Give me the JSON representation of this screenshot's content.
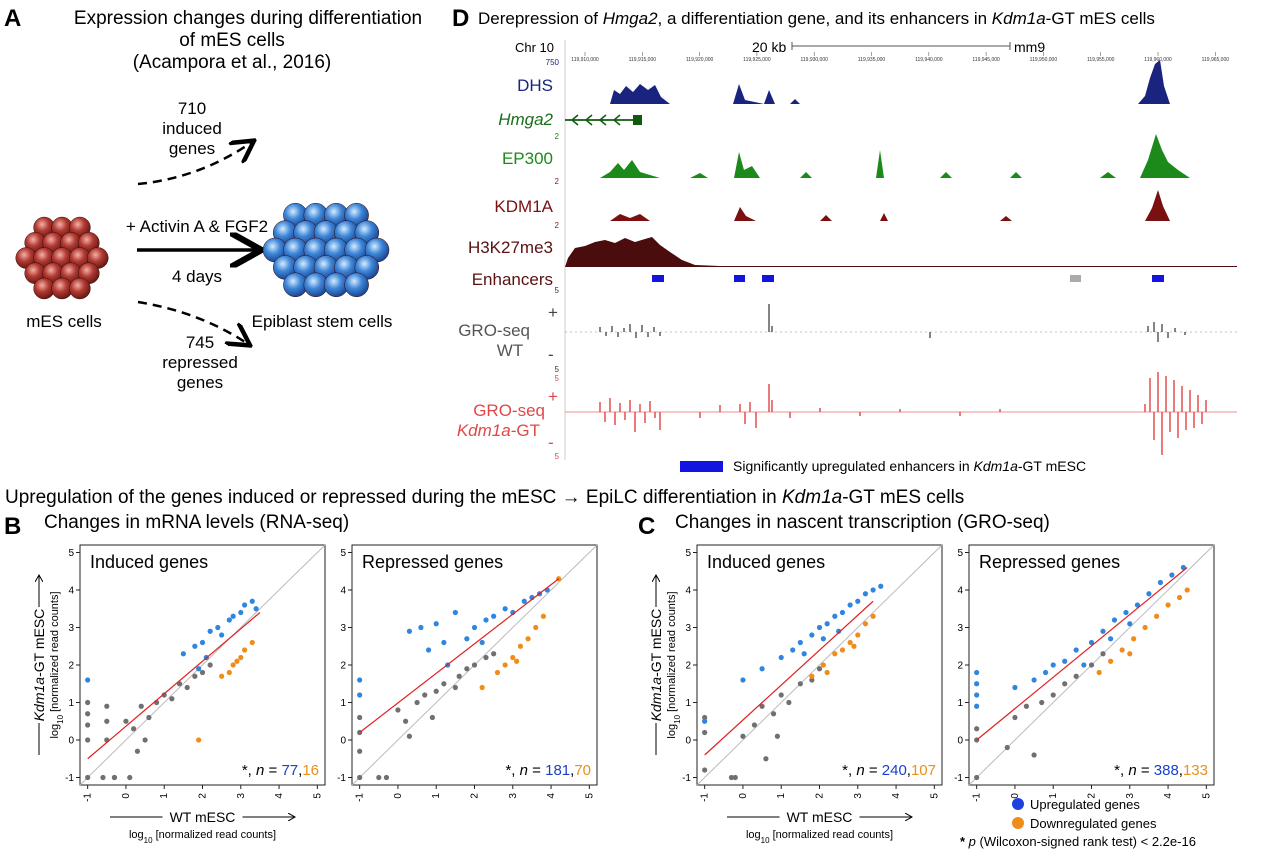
{
  "panel_a": {
    "letter": "A",
    "title": [
      "Expression changes during differentiation",
      "of mES cells",
      "(Acampora et al., 2016)"
    ],
    "induced_count": 710,
    "induced_label": [
      "induced",
      "genes"
    ],
    "repressed_count": 745,
    "repressed_label": [
      "repressed",
      "genes"
    ],
    "treatment": "+ Activin A & FGF2",
    "duration": "4 days",
    "start_cells": "mES cells",
    "end_cells": "Epiblast stem cells"
  },
  "panel_d": {
    "letter": "D",
    "title": [
      "Derepression of ",
      "Hmga2",
      ", a differentiation gene, and its enhancers in ",
      "Kdm1a",
      "-GT mES cells"
    ],
    "chromosome": "Chr 10",
    "scale": "20 kb",
    "assembly": "mm9",
    "coordinates": [
      "119,910,000",
      "119,915,000",
      "119,920,000",
      "119,925,000",
      "119,930,000",
      "119,935,000",
      "119,940,000",
      "119,945,000",
      "119,950,000",
      "119,955,000",
      "119,960,000",
      "119,965,000"
    ],
    "tracks": {
      "dhs": {
        "label": "DHS",
        "max": 750
      },
      "gene": "Hmga2",
      "ep300": {
        "label": "EP300",
        "max": 2
      },
      "kdm1a": {
        "label": "KDM1A",
        "max": 2
      },
      "h3k27me3": {
        "label": "H3K27me3",
        "max": 2
      },
      "enhancers": "Enhancers",
      "gro_wt": {
        "label": [
          "GRO-seq",
          "WT"
        ],
        "max": 5,
        "min": 5,
        "plus": "+",
        "minus": "-"
      },
      "gro_gt": {
        "label": [
          "GRO-seq",
          "Kdm1a",
          "-GT"
        ],
        "max": 5,
        "min": 5,
        "plus": "+",
        "minus": "-"
      }
    },
    "legend": [
      "Significantly upregulated enhancers in ",
      "Kdm1a",
      "-GT mESC"
    ]
  },
  "section_title": [
    "Upregulation of the genes induced or repressed during the mESC → EpiLC differentiation in ",
    "Kdm1a",
    "-GT mES cells"
  ],
  "panel_b": {
    "letter": "B",
    "title": "Changes in mRNA levels (RNA-seq)",
    "x_label": "WT mESC",
    "x_sublabel": [
      "log",
      "10",
      " [normalized read counts]"
    ],
    "y_label": [
      "Kdm1a",
      "-GT mESC"
    ],
    "y_sublabel": [
      "log",
      "10",
      " [normalized read counts]"
    ],
    "plots": [
      {
        "type": "scatter",
        "title": "Induced genes",
        "xlim": [
          -1.2,
          5.2
        ],
        "ylim": [
          -1.2,
          5.2
        ],
        "xticks": [
          -1,
          0,
          1,
          2,
          3,
          4,
          5
        ],
        "yticks": [
          -1,
          0,
          1,
          2,
          3,
          4,
          5
        ],
        "series": [
          {
            "color": "#2f86e0",
            "x": [
              1.5,
              1.8,
              2.0,
              2.2,
              2.4,
              2.5,
              2.7,
              2.8,
              3.0,
              3.1,
              3.3,
              3.4,
              2.1,
              1.9,
              -1
            ],
            "values": [
              2.3,
              2.5,
              2.6,
              2.9,
              3.0,
              2.8,
              3.2,
              3.3,
              3.4,
              3.6,
              3.7,
              3.5,
              2.2,
              1.9,
              1.6
            ]
          },
          {
            "color": "#f08c1a",
            "x": [
              2.5,
              2.7,
              2.8,
              3.0,
              3.1,
              3.3,
              2.9,
              1.9
            ],
            "values": [
              1.7,
              1.8,
              2.0,
              2.2,
              2.4,
              2.6,
              2.1,
              0.0
            ]
          },
          {
            "color": "#707070",
            "x": [
              -1,
              -1,
              -1,
              -1,
              -1,
              -0.5,
              -0.5,
              -0.5,
              -0.3,
              0,
              0.2,
              0.4,
              0.6,
              0.8,
              1.0,
              1.2,
              1.4,
              1.6,
              1.8,
              2.0,
              2.2,
              0.5,
              0.3,
              -0.6,
              -0.3,
              0.1
            ],
            "values": [
              1.0,
              0.7,
              0.4,
              0,
              -1,
              0.9,
              0.5,
              0,
              -1,
              0.5,
              0.3,
              0.9,
              0.6,
              1.0,
              1.2,
              1.1,
              1.5,
              1.4,
              1.7,
              1.8,
              2.0,
              0,
              -0.3,
              -1,
              -1,
              -1
            ]
          }
        ],
        "fit_line": {
          "x": [
            -1,
            3.5
          ],
          "values": [
            -0.5,
            3.4
          ]
        },
        "annotation": [
          "*, ",
          "n",
          " = "
        ],
        "n_up": 77,
        "separator": ",",
        "n_down": 16
      },
      {
        "type": "scatter",
        "title": "Repressed genes",
        "xlim": [
          -1.2,
          5.2
        ],
        "ylim": [
          -1.2,
          5.2
        ],
        "xticks": [
          -1,
          0,
          1,
          2,
          3,
          4,
          5
        ],
        "yticks": [
          -1,
          0,
          1,
          2,
          3,
          4,
          5
        ],
        "series": [
          {
            "color": "#2f86e0",
            "x": [
              -1,
              -1,
              0.3,
              0.6,
              0.8,
              1.0,
              1.2,
              1.5,
              1.8,
              2.0,
              2.3,
              2.5,
              2.8,
              3.0,
              3.3,
              3.5,
              3.7,
              3.9,
              1.3,
              2.2
            ],
            "values": [
              1.6,
              1.2,
              2.9,
              3.0,
              2.4,
              3.1,
              2.6,
              3.4,
              2.7,
              3.0,
              3.2,
              3.3,
              3.5,
              3.4,
              3.7,
              3.8,
              3.9,
              4.0,
              2.0,
              2.6
            ]
          },
          {
            "color": "#f08c1a",
            "x": [
              2.6,
              2.8,
              3.0,
              3.2,
              3.4,
              3.6,
              3.8,
              2.2,
              3.1,
              4.2
            ],
            "values": [
              1.8,
              2.0,
              2.2,
              2.5,
              2.7,
              3.0,
              3.3,
              1.4,
              2.1,
              4.3
            ]
          },
          {
            "color": "#707070",
            "x": [
              -1,
              -1,
              -1,
              -1,
              -0.3,
              0,
              0.2,
              0.5,
              0.7,
              1.0,
              1.2,
              1.5,
              1.8,
              2.0,
              2.3,
              2.5,
              0.3,
              -0.5,
              0.9,
              1.6
            ],
            "values": [
              0.6,
              0.2,
              -0.3,
              -1,
              -1,
              0.8,
              0.5,
              1.0,
              1.2,
              1.3,
              1.5,
              1.4,
              1.9,
              2.0,
              2.2,
              2.3,
              0.1,
              -1,
              0.6,
              1.7
            ]
          }
        ],
        "fit_line": {
          "x": [
            -1,
            4.2
          ],
          "values": [
            0.2,
            4.3
          ]
        },
        "annotation": [
          "*, ",
          "n",
          " = "
        ],
        "n_up": 181,
        "separator": ",",
        "n_down": 70
      }
    ]
  },
  "panel_c": {
    "letter": "C",
    "title": "Changes in nascent transcription (GRO-seq)",
    "x_label": "WT mESC",
    "x_sublabel": [
      "log",
      "10",
      " [normalized read counts]"
    ],
    "y_label": [
      "Kdm1a",
      "-GT mESC"
    ],
    "y_sublabel": [
      "log",
      "10",
      " [normalized read counts]"
    ],
    "plots": [
      {
        "type": "scatter",
        "title": "Induced genes",
        "xlim": [
          -1.2,
          5.2
        ],
        "ylim": [
          -1.2,
          5.2
        ],
        "xticks": [
          -1,
          0,
          1,
          2,
          3,
          4,
          5
        ],
        "yticks": [
          -1,
          0,
          1,
          2,
          3,
          4,
          5
        ],
        "series": [
          {
            "color": "#2f86e0",
            "x": [
              -1,
              0,
              0.5,
              1.0,
              1.3,
              1.5,
              1.8,
              2.0,
              2.2,
              2.4,
              2.6,
              2.8,
              3.0,
              3.2,
              3.4,
              3.6,
              2.1,
              1.6,
              2.5
            ],
            "values": [
              0.5,
              1.6,
              1.9,
              2.2,
              2.4,
              2.6,
              2.8,
              3.0,
              3.1,
              3.3,
              3.4,
              3.6,
              3.7,
              3.9,
              4.0,
              4.1,
              2.7,
              2.3,
              2.9
            ]
          },
          {
            "color": "#f08c1a",
            "x": [
              1.8,
              2.1,
              2.4,
              2.6,
              2.8,
              3.0,
              3.2,
              3.4,
              2.2,
              2.9
            ],
            "values": [
              1.7,
              2.0,
              2.3,
              2.4,
              2.6,
              2.8,
              3.1,
              3.3,
              1.8,
              2.5
            ]
          },
          {
            "color": "#707070",
            "x": [
              -1,
              -1,
              -1,
              -0.2,
              0,
              0.3,
              0.5,
              0.8,
              1.0,
              1.2,
              1.5,
              1.8,
              2.0,
              0.6,
              0.9,
              -0.3
            ],
            "values": [
              0.6,
              0.2,
              -0.8,
              -1,
              0.1,
              0.4,
              0.9,
              0.7,
              1.2,
              1.0,
              1.5,
              1.6,
              1.9,
              -0.5,
              0.1,
              -1
            ]
          }
        ],
        "fit_line": {
          "x": [
            -1,
            3.4
          ],
          "values": [
            -0.4,
            3.7
          ]
        },
        "annotation": [
          "*, ",
          "n",
          " = "
        ],
        "n_up": 240,
        "separator": ",",
        "n_down": 107
      },
      {
        "type": "scatter",
        "title": "Repressed genes",
        "xlim": [
          -1.2,
          5.2
        ],
        "ylim": [
          -1.2,
          5.2
        ],
        "xticks": [
          -1,
          0,
          1,
          2,
          3,
          4,
          5
        ],
        "yticks": [
          -1,
          0,
          1,
          2,
          3,
          4,
          5
        ],
        "series": [
          {
            "color": "#2f86e0",
            "x": [
              -1,
              -1,
              -1,
              -1,
              0,
              0.5,
              0.8,
              1.0,
              1.3,
              1.6,
              2.0,
              2.3,
              2.6,
              2.9,
              3.2,
              3.5,
              3.8,
              4.1,
              4.4,
              1.8,
              2.5,
              3.0
            ],
            "values": [
              1.8,
              1.5,
              1.2,
              0.9,
              1.4,
              1.6,
              1.8,
              2.0,
              2.1,
              2.4,
              2.6,
              2.9,
              3.2,
              3.4,
              3.6,
              3.9,
              4.2,
              4.4,
              4.6,
              2.0,
              2.7,
              3.1
            ]
          },
          {
            "color": "#f08c1a",
            "x": [
              2.2,
              2.5,
              2.8,
              3.1,
              3.4,
              3.7,
              4.0,
              4.3,
              4.5,
              3.0
            ],
            "values": [
              1.8,
              2.1,
              2.4,
              2.7,
              3.0,
              3.3,
              3.6,
              3.8,
              4.0,
              2.3
            ]
          },
          {
            "color": "#707070",
            "x": [
              -1,
              -1,
              -1,
              0,
              0.3,
              0.7,
              1.0,
              1.3,
              1.6,
              2.0,
              2.3,
              0.5,
              -0.2
            ],
            "values": [
              0.3,
              0,
              -1,
              0.6,
              0.9,
              1.0,
              1.2,
              1.5,
              1.7,
              2.0,
              2.3,
              -0.4,
              -0.2
            ]
          }
        ],
        "fit_line": {
          "x": [
            -1,
            4.5
          ],
          "values": [
            0,
            4.6
          ]
        },
        "annotation": [
          "*, ",
          "n",
          " = "
        ],
        "n_up": 388,
        "separator": ",",
        "n_down": 133
      }
    ],
    "legend": [
      {
        "label": "Upregulated genes",
        "color": "#1f3fe0"
      },
      {
        "label": "Downregulated genes",
        "color": "#f08c1a"
      }
    ],
    "footnote": [
      "* ",
      "p",
      " (Wilcoxon-signed rank test) < 2.2e-16"
    ]
  }
}
